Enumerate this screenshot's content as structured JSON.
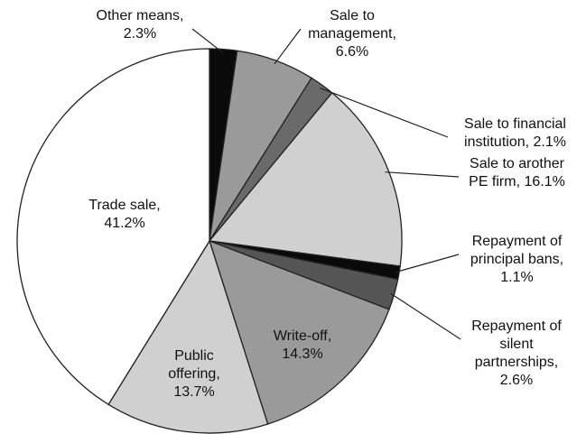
{
  "chart_data": {
    "type": "pie",
    "categories": [
      "Other means,",
      "Sale to management,",
      "Sale to financial institution,",
      "Sale to arother PE firm,",
      "Repayment of principal bans,",
      "Repayment of silent partnerships,",
      "Write-off,",
      "Public offering,",
      "Trade sale,"
    ],
    "values": [
      2.3,
      6.6,
      2.1,
      16.1,
      1.1,
      2.6,
      14.3,
      13.7,
      41.2
    ],
    "value_labels": [
      "2.3%",
      "6.6%",
      "2.1%",
      "16.1%",
      "1.1%",
      "2.6%",
      "14.3%",
      "13.7%",
      "41.2%"
    ],
    "colors": [
      "#0a0a0a",
      "#9a9a9a",
      "#6a6a6a",
      "#d0d0d0",
      "#0a0a0a",
      "#555555",
      "#9a9a9a",
      "#d0d0d0",
      "#ffffff"
    ]
  }
}
